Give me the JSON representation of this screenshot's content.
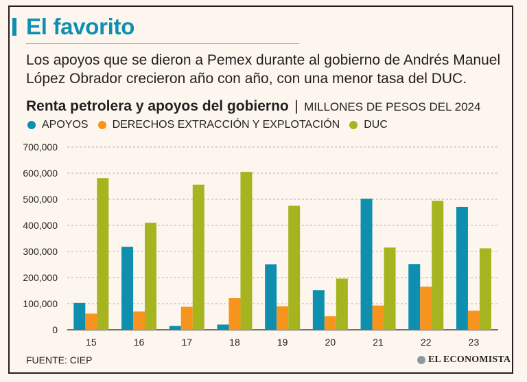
{
  "header": {
    "title": "El favorito",
    "subtitle": "Los apoyos que se dieron a Pemex durante al gobierno de Andrés Manuel López Obrador crecieron año con año, con una menor tasa del DUC."
  },
  "colors": {
    "accent": "#0f8fb0",
    "apoyos": "#0f8fb0",
    "derechos": "#f7941d",
    "duc": "#a5b41f"
  },
  "chart_data": {
    "type": "bar",
    "title": "Renta petrolera y apoyos del gobierno",
    "separator": "|",
    "unit": "MILLONES DE PESOS DEL 2024",
    "categories": [
      "15",
      "16",
      "17",
      "18",
      "19",
      "20",
      "21",
      "22",
      "23"
    ],
    "series": [
      {
        "name": "APOYOS",
        "color": "#0f8fb0",
        "values": [
          103000,
          318000,
          15000,
          20000,
          251000,
          152000,
          502000,
          252000,
          471000
        ]
      },
      {
        "name": "DERECHOS EXTRACCIÓN Y EXPLOTACIÓN",
        "color": "#f7941d",
        "values": [
          62000,
          70000,
          88000,
          121000,
          90000,
          52000,
          93000,
          165000,
          73000
        ]
      },
      {
        "name": "DUC",
        "color": "#a5b41f",
        "values": [
          581000,
          410000,
          556000,
          605000,
          475000,
          196000,
          315000,
          494000,
          312000
        ]
      }
    ],
    "ylim": [
      0,
      700000
    ],
    "yticks": [
      0,
      100000,
      200000,
      300000,
      400000,
      500000,
      600000,
      700000
    ],
    "ytick_labels": [
      "0",
      "100,000",
      "200,000",
      "300,000",
      "400,000",
      "500,000",
      "600,000",
      "700,000"
    ],
    "grid": true,
    "legend": "top-left"
  },
  "footer": {
    "source": "FUENTE: CIEP",
    "brand": "EL ECONOMISTA"
  }
}
